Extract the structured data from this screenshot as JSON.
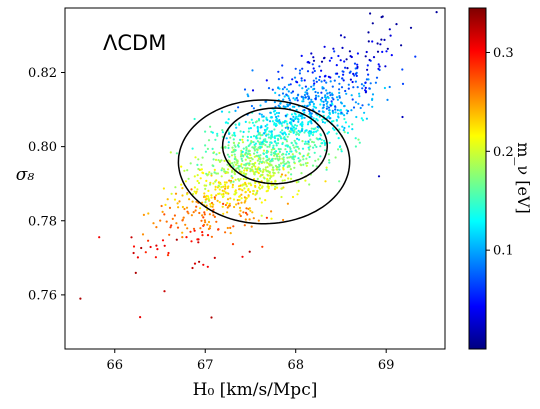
{
  "chart_data": {
    "type": "scatter",
    "annotation": "ΛCDM",
    "xlabel": "H₀ [km/s/Mpc]",
    "ylabel": "σ₈",
    "xlim": [
      65.45,
      69.65
    ],
    "ylim": [
      0.7454,
      0.8374
    ],
    "xticks": [
      66,
      67,
      68,
      69
    ],
    "yticks": [
      0.76,
      0.78,
      0.8,
      0.82
    ],
    "ytick_labels": [
      "0.76",
      "0.78",
      "0.80",
      "0.82"
    ],
    "grid": false,
    "colorbar": {
      "label": "m_ν [eV]",
      "range": [
        0.0,
        0.345
      ],
      "ticks": [
        0.1,
        0.2,
        0.3
      ],
      "tick_labels": [
        "0.1",
        "0.2",
        "0.3"
      ],
      "colormap": "jet"
    },
    "contours": [
      {
        "level": "inner",
        "center": [
          67.77,
          0.8002
        ],
        "semi_major": 1.05,
        "semi_minor": 0.0102,
        "angle_deg": 37
      },
      {
        "level": "outer",
        "center": [
          67.65,
          0.7959
        ],
        "semi_major": 1.72,
        "semi_minor": 0.0167,
        "angle_deg": 37
      }
    ],
    "points_summary": {
      "count": 1600,
      "mean_h0": 67.75,
      "mean_sigma8": 0.8,
      "seed": 7
    },
    "outliers": [
      {
        "h0": 65.62,
        "sigma8": 0.759,
        "mnu": 0.33
      },
      {
        "h0": 66.28,
        "sigma8": 0.754,
        "mnu": 0.31
      },
      {
        "h0": 69.18,
        "sigma8": 0.808,
        "mnu": 0.02
      },
      {
        "h0": 68.92,
        "sigma8": 0.792,
        "mnu": 0.02
      },
      {
        "h0": 68.5,
        "sigma8": 0.83,
        "mnu": 0.02
      },
      {
        "h0": 66.55,
        "sigma8": 0.761,
        "mnu": 0.32
      }
    ]
  }
}
